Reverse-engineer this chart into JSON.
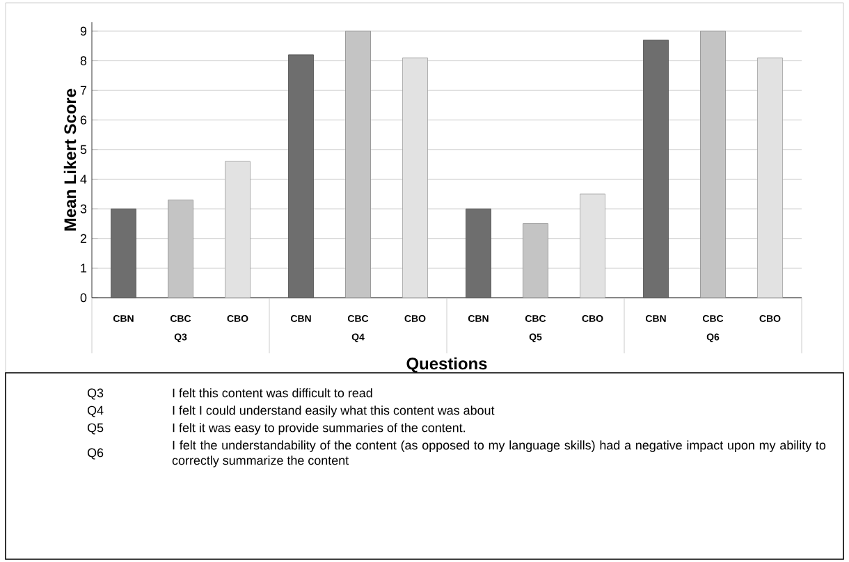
{
  "chart_data": {
    "type": "bar",
    "xlabel": "Questions",
    "ylabel": "Mean Likert Score",
    "categories": [
      "Q3",
      "Q4",
      "Q5",
      "Q6"
    ],
    "series": [
      {
        "name": "CBN",
        "color": "#6e6e6e",
        "values": [
          3.0,
          8.2,
          3.0,
          8.7
        ]
      },
      {
        "name": "CBC",
        "color": "#c4c4c4",
        "values": [
          3.3,
          9.0,
          2.5,
          9.0
        ]
      },
      {
        "name": "CBO",
        "color": "#e2e2e2",
        "values": [
          4.6,
          8.1,
          3.5,
          8.1
        ]
      }
    ],
    "ylim": [
      0,
      9.3
    ],
    "yticks": [
      0,
      1,
      2,
      3,
      4,
      5,
      6,
      7,
      8,
      9
    ],
    "grid": "y",
    "annotations": [
      "Q3",
      "I felt this content was difficult to read",
      "Q4",
      "I felt I could understand easily what this content was about",
      "Q5",
      "I felt it was easy to provide summaries of the content.",
      "Q6",
      "I felt the understandability of the content (as opposed to my language skills) had a negative impact upon my ability to correctly summarize the content"
    ]
  }
}
